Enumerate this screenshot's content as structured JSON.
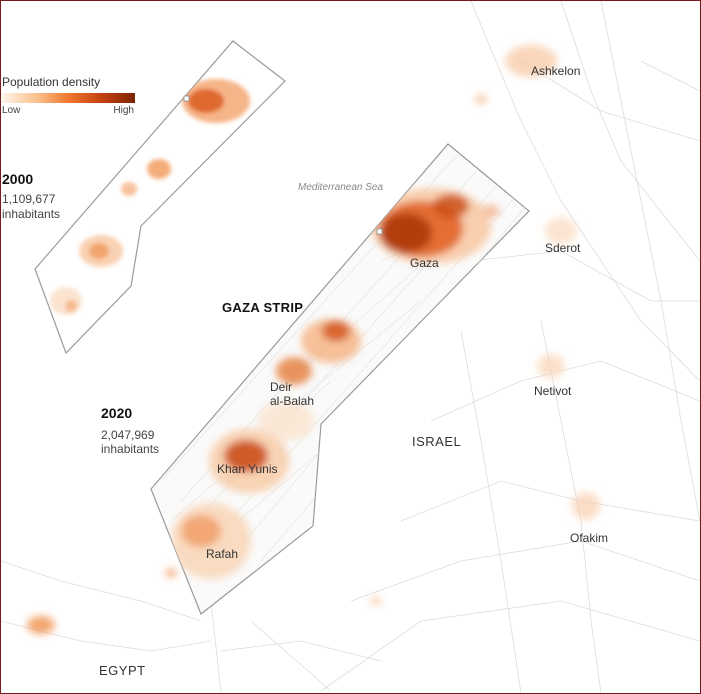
{
  "legend": {
    "title": "Population density",
    "low": "Low",
    "high": "High",
    "colors": [
      "#fff4ea",
      "#fbc592",
      "#f0782f",
      "#c2420f",
      "#7f2204"
    ]
  },
  "inset_2000": {
    "year": "2000",
    "population": "1,109,677",
    "unit": "inhabitants"
  },
  "main_2020": {
    "year": "2020",
    "population": "2,047,969",
    "unit": "inhabitants"
  },
  "region_label": "GAZA STRIP",
  "sea_label": "Mediterranean Sea",
  "countries": {
    "israel": "ISRAEL",
    "egypt": "EGYPT"
  },
  "gaza_cities": [
    "Gaza",
    "Deir",
    "al-Balah",
    "Khan Yunis",
    "Rafah"
  ],
  "israel_cities": [
    "Ashkelon",
    "Sderot",
    "Netivot",
    "Ofakim"
  ],
  "colors": {
    "frame_border": "#7a1a1a",
    "strip_outline": "#9a9a9a",
    "roads": "#d6d6d6"
  }
}
